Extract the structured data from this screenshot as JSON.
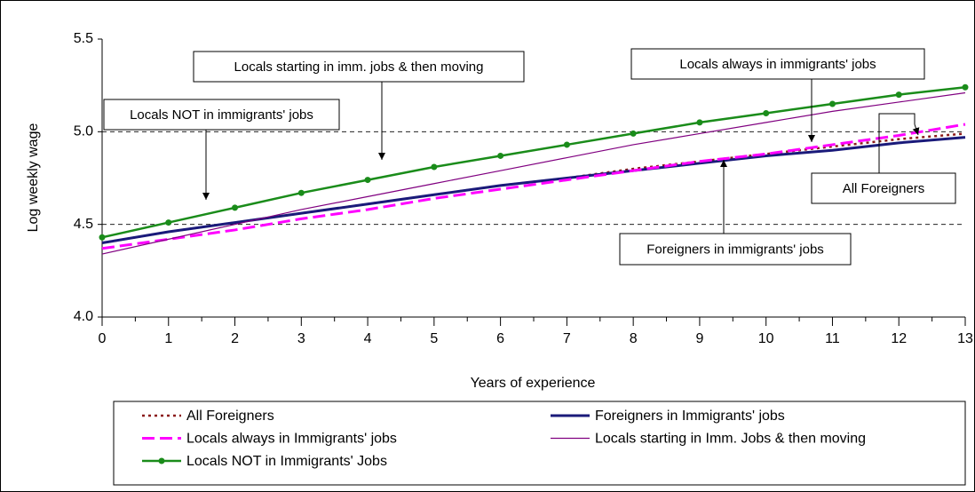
{
  "chart_data": {
    "type": "line",
    "xlabel": "Years of experience",
    "ylabel": "Log weekly wage",
    "x": [
      0,
      1,
      2,
      3,
      4,
      5,
      6,
      7,
      8,
      9,
      10,
      11,
      12,
      13
    ],
    "xlim": [
      0,
      13
    ],
    "xticks": [
      0,
      1,
      2,
      3,
      4,
      5,
      6,
      7,
      8,
      9,
      10,
      11,
      12,
      13
    ],
    "ylim": [
      4,
      5.5
    ],
    "yticks": [
      {
        "value": 4,
        "label": "4.0"
      },
      {
        "value": 4.5,
        "label": "4.5"
      },
      {
        "value": 5,
        "label": "5.0"
      },
      {
        "value": 5.5,
        "label": "5.5"
      }
    ],
    "grid": true,
    "series": [
      {
        "name": "All Foreigners",
        "color": "#8b1a1a",
        "style": "dotted",
        "values": [
          4.4,
          4.46,
          4.51,
          4.56,
          4.61,
          4.66,
          4.71,
          4.75,
          4.8,
          4.84,
          4.88,
          4.92,
          4.96,
          4.99
        ]
      },
      {
        "name": "Foreigners in Immigrants' jobs",
        "color": "#1a1a7a",
        "style": "thick",
        "values": [
          4.4,
          4.46,
          4.51,
          4.56,
          4.61,
          4.66,
          4.71,
          4.75,
          4.79,
          4.83,
          4.87,
          4.9,
          4.94,
          4.97
        ]
      },
      {
        "name": "Locals always in Immigrants' jobs",
        "color": "#ff00ff",
        "style": "dashed",
        "values": [
          4.37,
          4.42,
          4.47,
          4.53,
          4.58,
          4.64,
          4.69,
          4.74,
          4.79,
          4.84,
          4.88,
          4.93,
          4.98,
          5.04
        ]
      },
      {
        "name": "Locals starting in Imm. Jobs & then moving",
        "color": "#800080",
        "style": "thin",
        "values": [
          4.34,
          4.42,
          4.5,
          4.58,
          4.65,
          4.72,
          4.79,
          4.86,
          4.93,
          4.99,
          5.05,
          5.11,
          5.16,
          5.21
        ]
      },
      {
        "name": "Locals NOT in Immigrants' Jobs",
        "color": "#1a8c1a",
        "style": "markers",
        "values": [
          4.43,
          4.51,
          4.59,
          4.67,
          4.74,
          4.81,
          4.87,
          4.93,
          4.99,
          5.05,
          5.1,
          5.15,
          5.2,
          5.24
        ]
      }
    ],
    "annotations": [
      "Locals starting in imm. jobs & then moving",
      "Locals NOT in immigrants' jobs",
      "Locals always in immigrants' jobs",
      "All Foreigners",
      "Foreigners in immigrants' jobs"
    ]
  }
}
